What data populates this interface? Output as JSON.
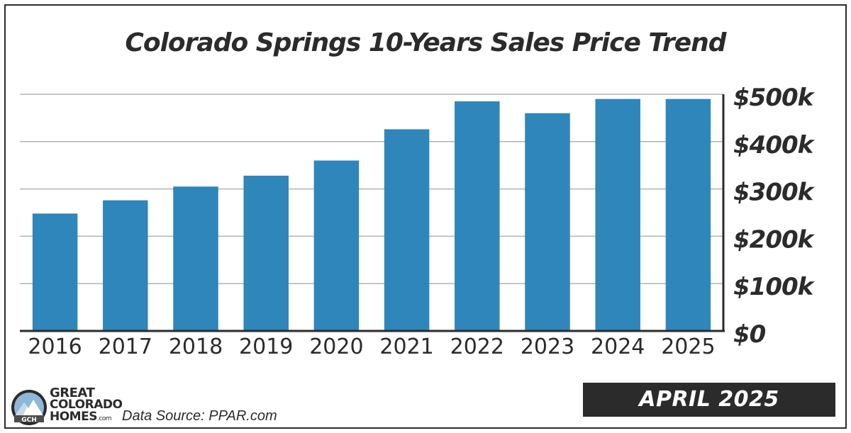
{
  "header": {
    "title": "Colorado Springs 10-Years Sales Price Trend"
  },
  "chart_data": {
    "type": "bar",
    "title": "Colorado Springs 10-Years Sales Price Trend",
    "xlabel": "",
    "ylabel": "",
    "categories": [
      "2016",
      "2017",
      "2018",
      "2019",
      "2020",
      "2021",
      "2022",
      "2023",
      "2024",
      "2025"
    ],
    "values": [
      248000,
      276000,
      305000,
      328000,
      360000,
      426000,
      485000,
      460000,
      490000,
      490000
    ],
    "ylim": [
      0,
      500000
    ],
    "y_ticks": [
      0,
      100000,
      200000,
      300000,
      400000,
      500000
    ],
    "y_tick_labels": [
      "$0",
      "$100k",
      "$200k",
      "$300k",
      "$400k",
      "$500k"
    ],
    "y_axis_side": "right",
    "grid": true,
    "legend": "none",
    "bar_color": "#2e86bb",
    "gridline_color": "#b3b3b3",
    "axis_color": "#2b2b2b"
  },
  "footer": {
    "brand_line1": "GREAT",
    "brand_line2": "COLORADO",
    "brand_line3": "HOMES",
    "brand_suffix": ".com",
    "logo_initials": "GCH",
    "source": "Data Source: PPAR.com",
    "badge": "APRIL 2025"
  }
}
